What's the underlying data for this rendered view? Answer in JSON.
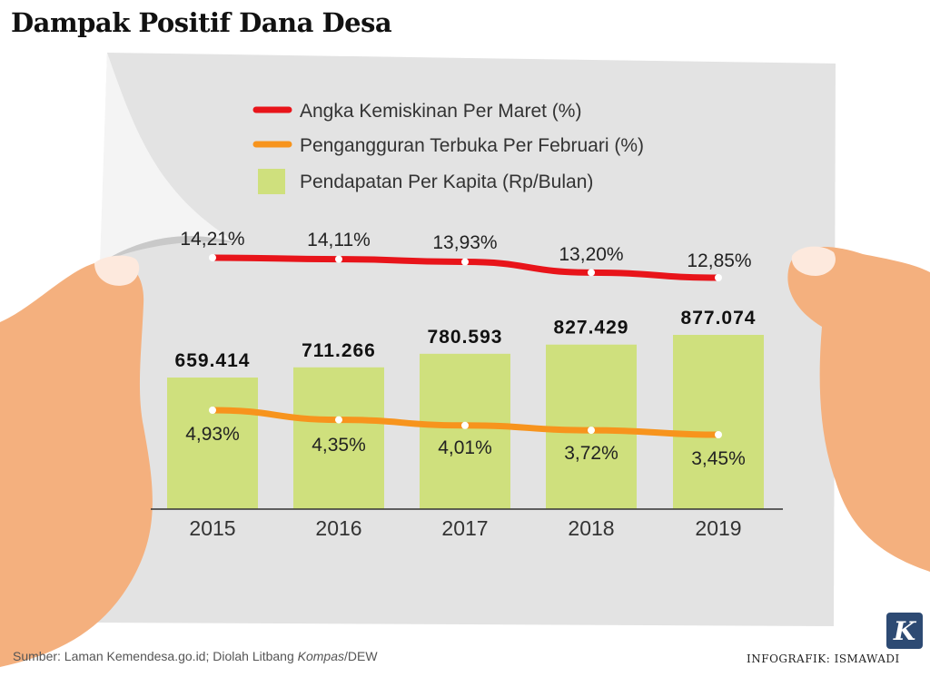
{
  "title": "Dampak Positif Dana Desa",
  "colors": {
    "poverty_line": "#e8141a",
    "unemployment_line": "#f7941d",
    "income_bar": "#cfe07d",
    "paper": "#e3e3e3",
    "skin": "#f4b07e"
  },
  "chart_data": {
    "type": "bar",
    "categories": [
      "2015",
      "2016",
      "2017",
      "2018",
      "2019"
    ],
    "series": [
      {
        "name": "Pendapatan Per Kapita (Rp/Bulan)",
        "kind": "bar",
        "values": [
          659414,
          711266,
          780593,
          827429,
          877074
        ],
        "labels": [
          "659.414",
          "711.266",
          "780.593",
          "827.429",
          "877.074"
        ]
      },
      {
        "name": "Angka Kemiskinan Per Maret (%)",
        "kind": "line",
        "values": [
          14.21,
          14.11,
          13.93,
          13.2,
          12.85
        ],
        "labels": [
          "14,21%",
          "14,11%",
          "13,93%",
          "13,20%",
          "12,85%"
        ]
      },
      {
        "name": "Pengangguran Terbuka Per Februari (%)",
        "kind": "line",
        "values": [
          4.93,
          4.35,
          4.01,
          3.72,
          3.45
        ],
        "labels": [
          "4,93%",
          "4,35%",
          "4,01%",
          "3,72%",
          "3,45%"
        ]
      }
    ],
    "legend": "top"
  },
  "source_prefix": "Sumber: Laman Kemendesa.go.id; Diolah Litbang ",
  "source_italic": "Kompas",
  "source_suffix": "/DEW",
  "credit": "INFOGRAFIK: ISMAWADI",
  "logo_letter": "K"
}
